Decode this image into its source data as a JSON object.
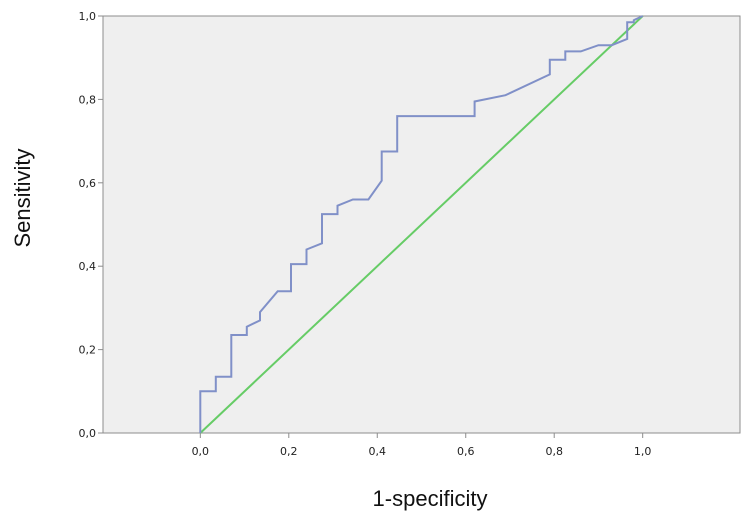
{
  "chart_data": {
    "type": "line",
    "title": "",
    "xlabel": "1-specificity",
    "ylabel": "Sensitivity",
    "xlim": [
      -0.22,
      1.22
    ],
    "ylim": [
      0,
      1
    ],
    "grid": false,
    "legend": "none",
    "background_color": "#efefef",
    "x_ticks": [
      0,
      0.2,
      0.4,
      0.6,
      0.8,
      1.0
    ],
    "x_tick_labels": [
      "0,0",
      "0,2",
      "0,4",
      "0,6",
      "0,8",
      "1,0"
    ],
    "y_ticks": [
      0,
      0.2,
      0.4,
      0.6,
      0.8,
      1.0
    ],
    "y_tick_labels": [
      "0,0",
      "0,2",
      "0,4",
      "0,6",
      "0,8",
      "1,0"
    ],
    "series": [
      {
        "color": "#8090c8",
        "x": [
          0.0,
          0.0,
          0.035,
          0.035,
          0.07,
          0.07,
          0.105,
          0.105,
          0.135,
          0.135,
          0.175,
          0.205,
          0.205,
          0.24,
          0.24,
          0.275,
          0.275,
          0.31,
          0.31,
          0.345,
          0.38,
          0.41,
          0.41,
          0.445,
          0.445,
          0.62,
          0.62,
          0.69,
          0.79,
          0.79,
          0.825,
          0.825,
          0.86,
          0.9,
          0.93,
          0.965,
          0.965,
          0.98,
          0.98,
          1.0
        ],
        "y": [
          0.0,
          0.1,
          0.1,
          0.135,
          0.135,
          0.235,
          0.235,
          0.255,
          0.27,
          0.29,
          0.34,
          0.34,
          0.405,
          0.405,
          0.44,
          0.455,
          0.525,
          0.525,
          0.545,
          0.56,
          0.56,
          0.605,
          0.675,
          0.675,
          0.76,
          0.76,
          0.795,
          0.81,
          0.86,
          0.895,
          0.895,
          0.915,
          0.915,
          0.93,
          0.93,
          0.945,
          0.985,
          0.985,
          0.99,
          1.0
        ]
      },
      {
        "color": "#66cc66",
        "x": [
          0.0,
          1.0
        ],
        "y": [
          0.0,
          1.0
        ]
      }
    ]
  }
}
